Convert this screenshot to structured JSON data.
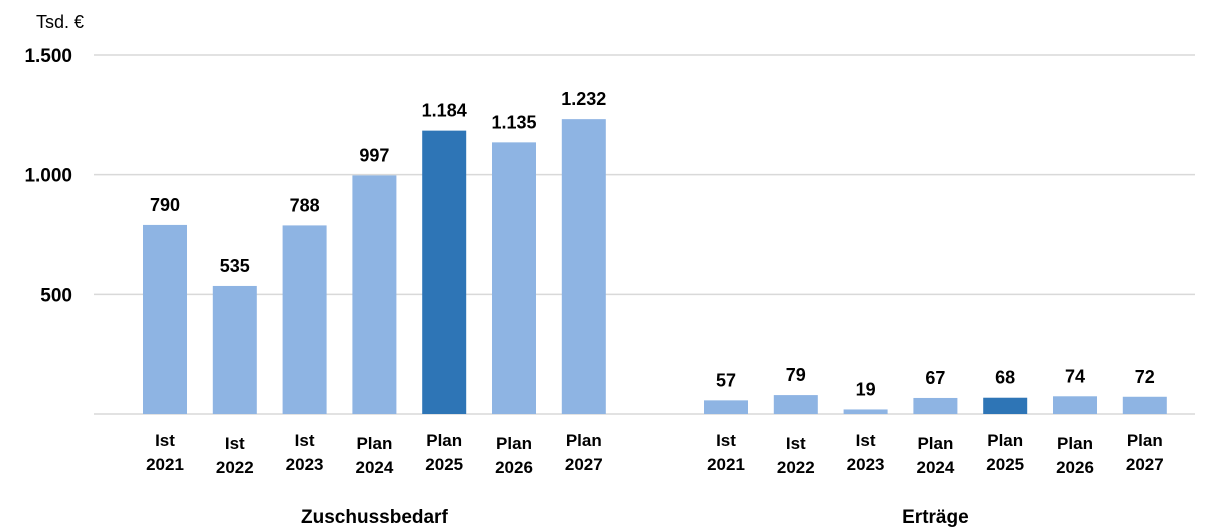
{
  "chart_data": {
    "type": "bar",
    "unit_label": "Tsd. €",
    "ylim": [
      0,
      1500
    ],
    "y_ticks": [
      {
        "value": 500,
        "label": "500"
      },
      {
        "value": 1000,
        "label": "1.000"
      },
      {
        "value": 1500,
        "label": "1.500"
      }
    ],
    "grid": true,
    "colors": {
      "default": "#8eb4e3",
      "highlight": "#2e75b6"
    },
    "groups": [
      {
        "name": "Zuschussbedarf",
        "bars": [
          {
            "line1": "Ist",
            "line2": "2021",
            "value": 790,
            "label": "790",
            "highlight": false
          },
          {
            "line1": "Ist",
            "line2": "2022",
            "value": 535,
            "label": "535",
            "highlight": false
          },
          {
            "line1": "Ist",
            "line2": "2023",
            "value": 788,
            "label": "788",
            "highlight": false
          },
          {
            "line1": "Plan",
            "line2": "2024",
            "value": 997,
            "label": "997",
            "highlight": false
          },
          {
            "line1": "Plan",
            "line2": "2025",
            "value": 1184,
            "label": "1.184",
            "highlight": true
          },
          {
            "line1": "Plan",
            "line2": "2026",
            "value": 1135,
            "label": "1.135",
            "highlight": false
          },
          {
            "line1": "Plan",
            "line2": "2027",
            "value": 1232,
            "label": "1.232",
            "highlight": false
          }
        ]
      },
      {
        "name": "Erträge",
        "bars": [
          {
            "line1": "Ist",
            "line2": "2021",
            "value": 57,
            "label": "57",
            "highlight": false
          },
          {
            "line1": "Ist",
            "line2": "2022",
            "value": 79,
            "label": "79",
            "highlight": false
          },
          {
            "line1": "Ist",
            "line2": "2023",
            "value": 19,
            "label": "19",
            "highlight": false
          },
          {
            "line1": "Plan",
            "line2": "2024",
            "value": 67,
            "label": "67",
            "highlight": false
          },
          {
            "line1": "Plan",
            "line2": "2025",
            "value": 68,
            "label": "68",
            "highlight": true
          },
          {
            "line1": "Plan",
            "line2": "2026",
            "value": 74,
            "label": "74",
            "highlight": false
          },
          {
            "line1": "Plan",
            "line2": "2027",
            "value": 72,
            "label": "72",
            "highlight": false
          }
        ]
      }
    ]
  }
}
